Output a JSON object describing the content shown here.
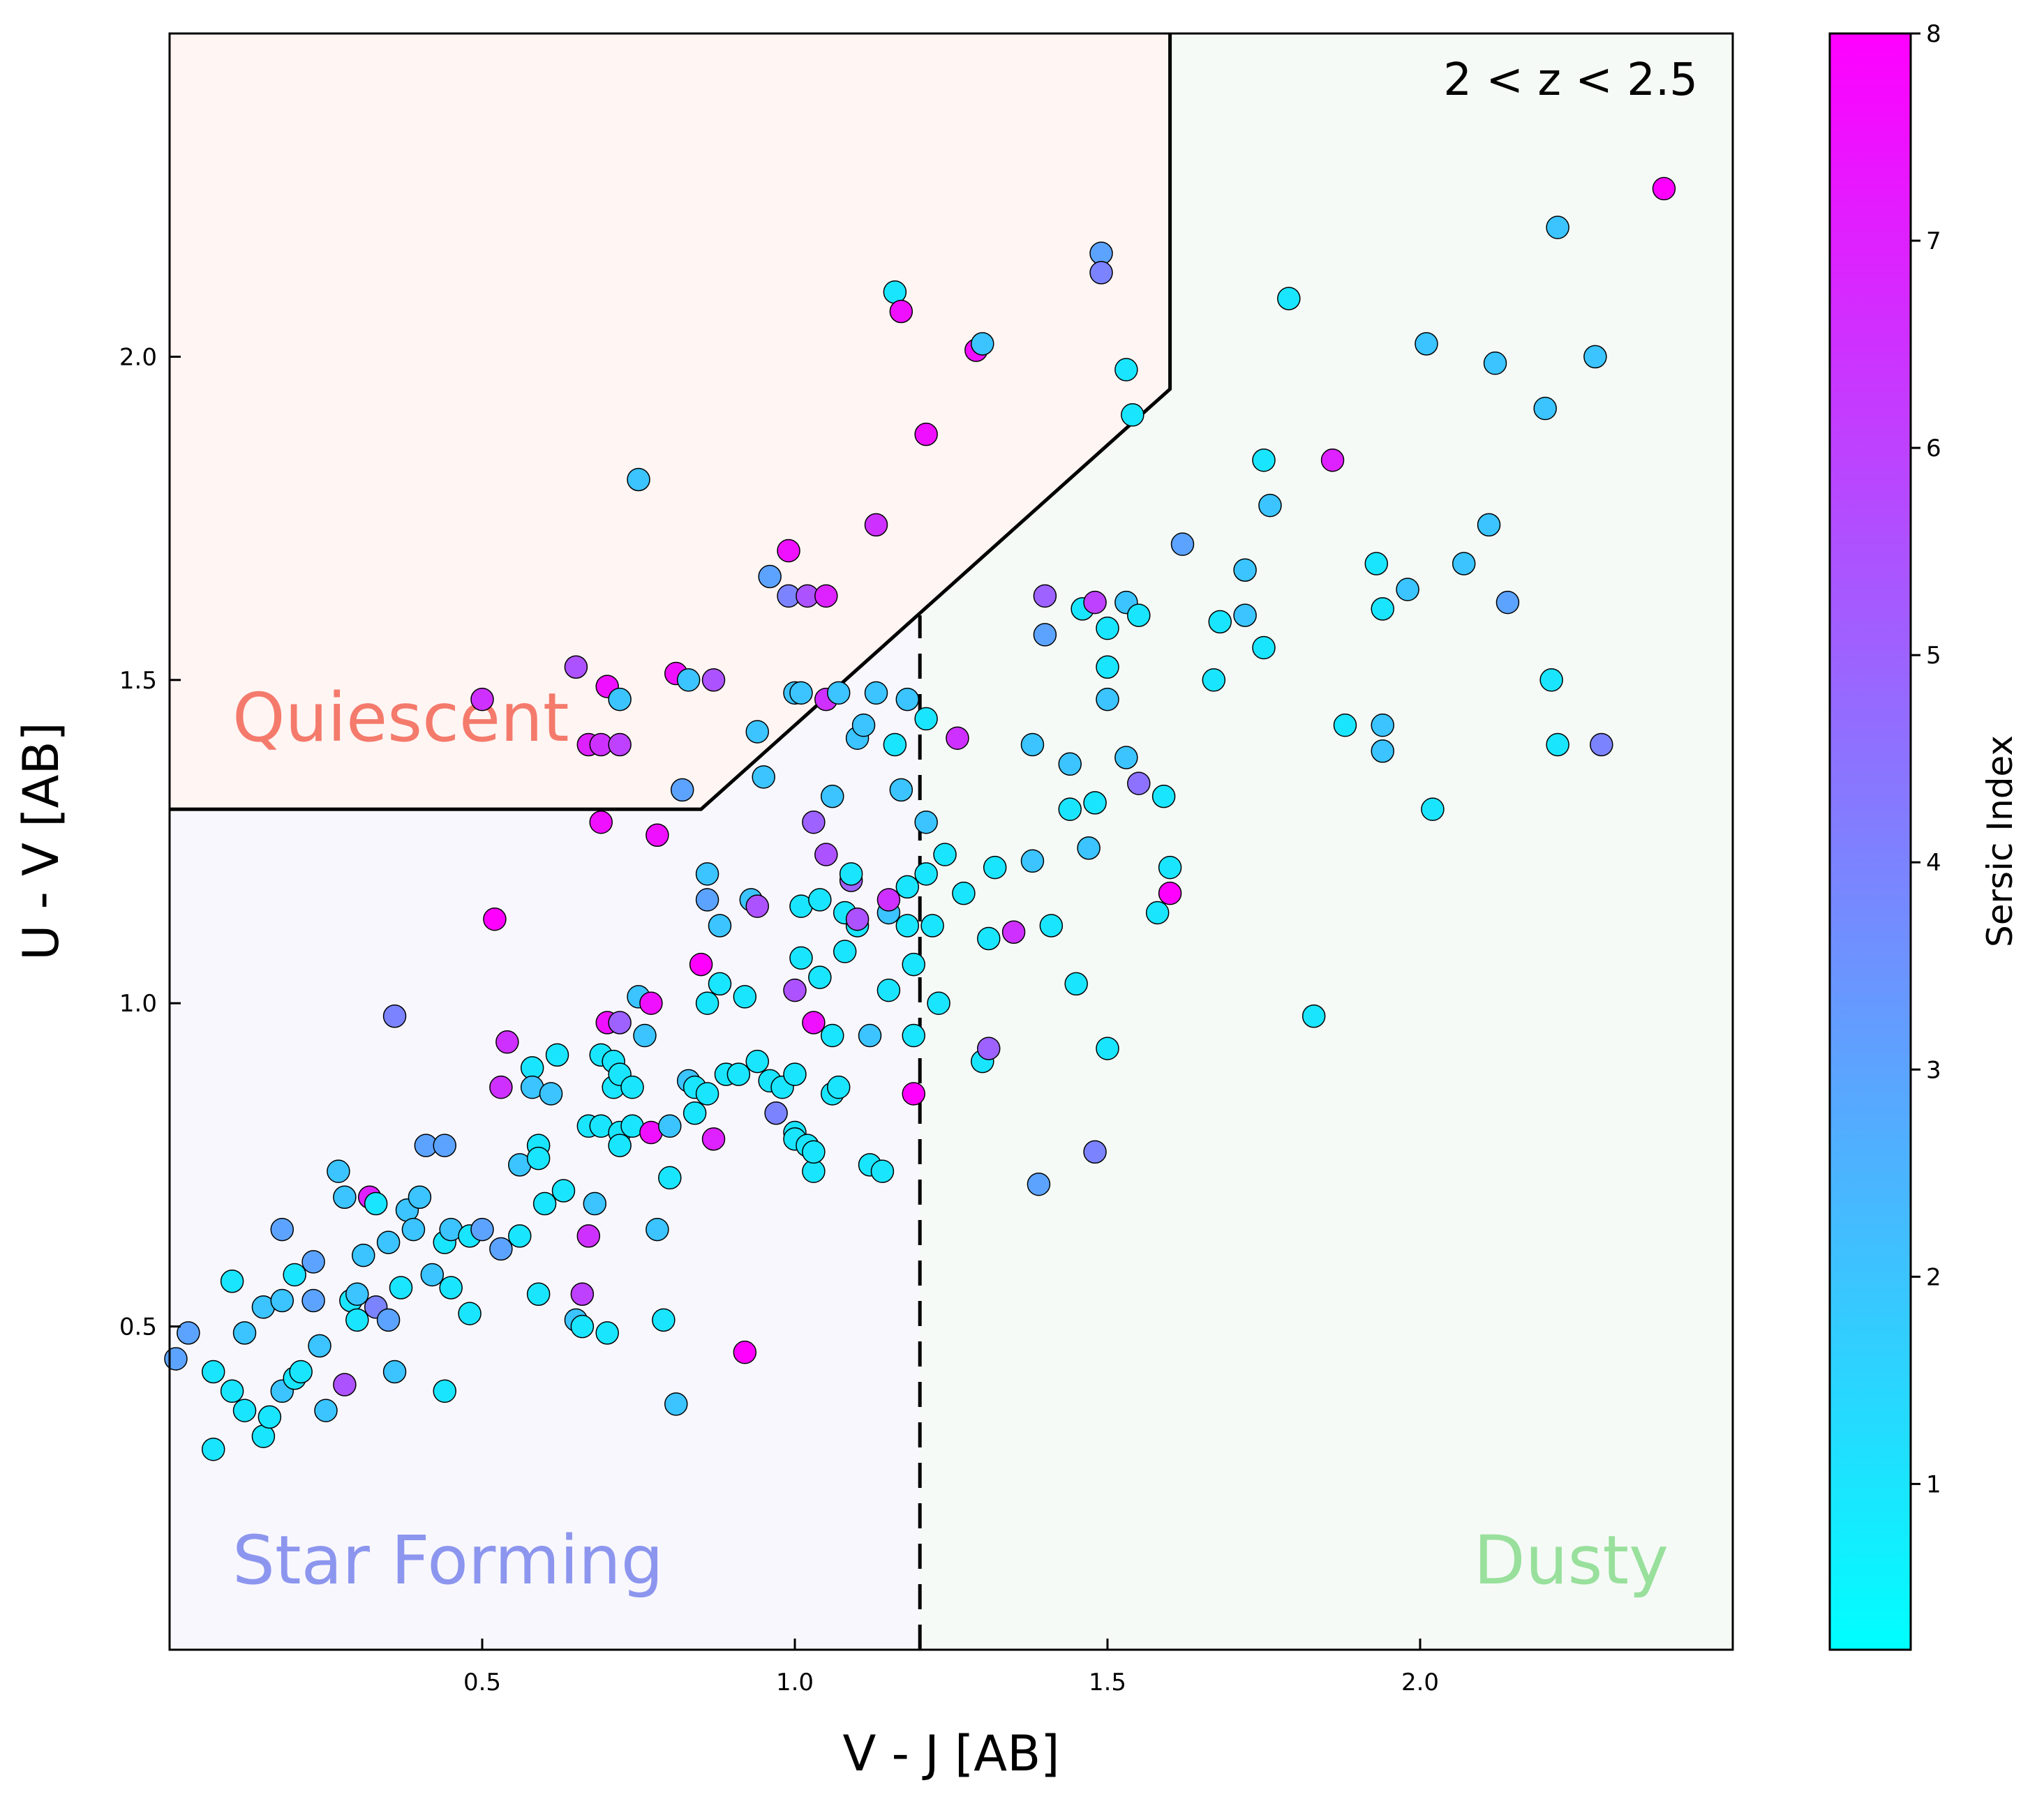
{
  "chart_data": {
    "type": "scatter",
    "annotation": "2 < z < 2.5",
    "xlabel": "V - J [AB]",
    "ylabel": "U - V [AB]",
    "xlim": [
      0.0,
      2.5
    ],
    "ylim": [
      0.0,
      2.5
    ],
    "xticks": [
      0.5,
      1.0,
      1.5,
      2.0
    ],
    "yticks": [
      0.5,
      1.0,
      1.5,
      2.0
    ],
    "grid": false,
    "regions": [
      {
        "label": "Quiescent",
        "color": "#f47a6c",
        "fill": "#fff5f3"
      },
      {
        "label": "Star Forming",
        "color": "#8c96ee",
        "fill": "#f8f7fd"
      },
      {
        "label": "Dusty",
        "color": "#98e09c",
        "fill": "#f5faf6"
      }
    ],
    "quiescent_boundary": [
      [
        0.0,
        1.3
      ],
      [
        0.85,
        1.3
      ],
      [
        1.6,
        1.95
      ],
      [
        1.6,
        2.5
      ]
    ],
    "dusty_divider": {
      "x": 1.2,
      "y_range": [
        0.0,
        1.6
      ]
    },
    "colorbar": {
      "label": "Sersic Index",
      "min": 0.2,
      "max": 8.0,
      "ticks": [
        1,
        2,
        3,
        4,
        5,
        6,
        7,
        8
      ],
      "colormap": "cool",
      "colors": [
        "#00ffff",
        "#ff00ff"
      ]
    },
    "points": [
      [
        0.01,
        0.45,
        3.0
      ],
      [
        0.03,
        0.49,
        3.0
      ],
      [
        0.07,
        0.43,
        1.0
      ],
      [
        0.07,
        0.31,
        1.0
      ],
      [
        0.1,
        0.57,
        1.0
      ],
      [
        0.1,
        0.4,
        1.0
      ],
      [
        0.12,
        0.49,
        2.0
      ],
      [
        0.12,
        0.37,
        1.0
      ],
      [
        0.15,
        0.53,
        2.0
      ],
      [
        0.15,
        0.33,
        1.0
      ],
      [
        0.16,
        0.36,
        1.0
      ],
      [
        0.18,
        0.54,
        2.0
      ],
      [
        0.18,
        0.4,
        2.0
      ],
      [
        0.18,
        0.65,
        3.0
      ],
      [
        0.2,
        0.58,
        1.0
      ],
      [
        0.2,
        0.42,
        1.0
      ],
      [
        0.21,
        0.43,
        1.0
      ],
      [
        0.23,
        0.6,
        3.0
      ],
      [
        0.23,
        0.54,
        3.0
      ],
      [
        0.24,
        0.47,
        2.0
      ],
      [
        0.25,
        0.37,
        2.0
      ],
      [
        0.27,
        0.74,
        2.0
      ],
      [
        0.28,
        0.7,
        2.0
      ],
      [
        0.28,
        0.41,
        5.5
      ],
      [
        0.29,
        0.54,
        1.0
      ],
      [
        0.3,
        0.55,
        2.0
      ],
      [
        0.3,
        0.51,
        1.0
      ],
      [
        0.31,
        0.61,
        2.0
      ],
      [
        0.32,
        0.7,
        7.0
      ],
      [
        0.33,
        0.69,
        1.0
      ],
      [
        0.33,
        0.53,
        4.0
      ],
      [
        0.35,
        0.51,
        3.0
      ],
      [
        0.35,
        0.63,
        2.0
      ],
      [
        0.36,
        0.43,
        2.0
      ],
      [
        0.36,
        0.98,
        4.0
      ],
      [
        0.37,
        0.56,
        1.0
      ],
      [
        0.38,
        0.68,
        2.0
      ],
      [
        0.39,
        0.65,
        2.0
      ],
      [
        0.4,
        0.7,
        2.0
      ],
      [
        0.41,
        0.78,
        3.0
      ],
      [
        0.42,
        0.58,
        2.0
      ],
      [
        0.44,
        0.63,
        1.0
      ],
      [
        0.44,
        0.78,
        3.0
      ],
      [
        0.44,
        0.4,
        1.0
      ],
      [
        0.45,
        0.65,
        2.0
      ],
      [
        0.45,
        0.56,
        1.0
      ],
      [
        0.48,
        0.64,
        1.0
      ],
      [
        0.48,
        0.52,
        1.0
      ],
      [
        0.5,
        0.65,
        3.0
      ],
      [
        0.5,
        1.47,
        6.5
      ],
      [
        0.52,
        1.13,
        8.0
      ],
      [
        0.53,
        0.62,
        3.0
      ],
      [
        0.53,
        0.87,
        6.5
      ],
      [
        0.54,
        0.94,
        6.5
      ],
      [
        0.56,
        0.75,
        2.0
      ],
      [
        0.56,
        0.64,
        1.0
      ],
      [
        0.58,
        0.9,
        1.0
      ],
      [
        0.58,
        0.87,
        2.0
      ],
      [
        0.59,
        0.78,
        1.0
      ],
      [
        0.59,
        0.76,
        1.0
      ],
      [
        0.59,
        0.55,
        1.0
      ],
      [
        0.6,
        0.69,
        1.0
      ],
      [
        0.61,
        0.86,
        2.0
      ],
      [
        0.62,
        0.92,
        1.0
      ],
      [
        0.63,
        0.71,
        1.0
      ],
      [
        0.65,
        1.52,
        5.5
      ],
      [
        0.65,
        0.51,
        2.0
      ],
      [
        0.66,
        0.5,
        1.0
      ],
      [
        0.66,
        0.55,
        6.0
      ],
      [
        0.67,
        0.81,
        1.0
      ],
      [
        0.67,
        1.4,
        7.0
      ],
      [
        0.67,
        0.64,
        6.5
      ],
      [
        0.68,
        0.69,
        2.0
      ],
      [
        0.69,
        0.81,
        1.0
      ],
      [
        0.69,
        0.92,
        1.0
      ],
      [
        0.69,
        1.4,
        6.5
      ],
      [
        0.69,
        1.28,
        7.5
      ],
      [
        0.7,
        0.97,
        7.5
      ],
      [
        0.7,
        1.49,
        7.5
      ],
      [
        0.7,
        0.49,
        1.0
      ],
      [
        0.71,
        0.91,
        1.0
      ],
      [
        0.71,
        0.87,
        1.0
      ],
      [
        0.72,
        0.89,
        1.0
      ],
      [
        0.72,
        0.8,
        1.0
      ],
      [
        0.72,
        0.78,
        1.0
      ],
      [
        0.72,
        1.4,
        6.0
      ],
      [
        0.72,
        1.47,
        2.0
      ],
      [
        0.72,
        0.97,
        5.0
      ],
      [
        0.74,
        0.87,
        1.0
      ],
      [
        0.74,
        0.81,
        1.0
      ],
      [
        0.75,
        1.01,
        2.0
      ],
      [
        0.75,
        1.81,
        2.0
      ],
      [
        0.76,
        0.95,
        2.0
      ],
      [
        0.77,
        0.8,
        7.5
      ],
      [
        0.77,
        1.0,
        7.5
      ],
      [
        0.78,
        1.26,
        7.5
      ],
      [
        0.78,
        0.65,
        2.0
      ],
      [
        0.79,
        0.51,
        1.0
      ],
      [
        0.8,
        0.81,
        2.0
      ],
      [
        0.8,
        0.73,
        1.0
      ],
      [
        0.81,
        0.38,
        2.0
      ],
      [
        0.81,
        1.51,
        7.5
      ],
      [
        0.82,
        1.33,
        3.0
      ],
      [
        0.83,
        1.5,
        2.0
      ],
      [
        0.83,
        0.88,
        2.0
      ],
      [
        0.84,
        0.87,
        1.0
      ],
      [
        0.84,
        0.83,
        1.0
      ],
      [
        0.85,
        1.06,
        8.0
      ],
      [
        0.86,
        1.2,
        2.0
      ],
      [
        0.86,
        1.16,
        3.0
      ],
      [
        0.86,
        1.0,
        1.0
      ],
      [
        0.86,
        0.86,
        1.0
      ],
      [
        0.87,
        0.79,
        7.0
      ],
      [
        0.87,
        1.5,
        5.5
      ],
      [
        0.88,
        1.12,
        2.0
      ],
      [
        0.88,
        1.03,
        1.0
      ],
      [
        0.89,
        0.89,
        1.0
      ],
      [
        0.91,
        0.89,
        1.0
      ],
      [
        0.92,
        0.46,
        8.0
      ],
      [
        0.92,
        1.01,
        1.0
      ],
      [
        0.93,
        1.16,
        2.0
      ],
      [
        0.94,
        0.91,
        1.0
      ],
      [
        0.94,
        1.15,
        5.5
      ],
      [
        0.94,
        1.42,
        2.0
      ],
      [
        0.95,
        1.35,
        2.0
      ],
      [
        0.96,
        1.66,
        3.0
      ],
      [
        0.96,
        0.88,
        1.0
      ],
      [
        0.97,
        0.83,
        4.0
      ],
      [
        0.98,
        0.87,
        1.0
      ],
      [
        0.99,
        1.7,
        7.5
      ],
      [
        0.99,
        1.63,
        4.0
      ],
      [
        1.0,
        0.8,
        1.0
      ],
      [
        1.0,
        0.79,
        1.0
      ],
      [
        1.0,
        1.02,
        5.5
      ],
      [
        1.0,
        1.48,
        2.0
      ],
      [
        1.0,
        0.89,
        1.0
      ],
      [
        1.01,
        1.48,
        2.0
      ],
      [
        1.01,
        1.15,
        1.0
      ],
      [
        1.01,
        1.07,
        1.0
      ],
      [
        1.02,
        0.78,
        1.0
      ],
      [
        1.02,
        1.63,
        5.5
      ],
      [
        1.03,
        0.97,
        7.5
      ],
      [
        1.03,
        1.28,
        5.0
      ],
      [
        1.03,
        0.74,
        1.0
      ],
      [
        1.03,
        0.77,
        1.0
      ],
      [
        1.04,
        1.04,
        1.0
      ],
      [
        1.04,
        1.16,
        1.0
      ],
      [
        1.05,
        1.23,
        5.5
      ],
      [
        1.05,
        1.47,
        6.5
      ],
      [
        1.05,
        1.63,
        7.0
      ],
      [
        1.06,
        0.95,
        1.0
      ],
      [
        1.06,
        1.32,
        2.0
      ],
      [
        1.06,
        0.86,
        1.0
      ],
      [
        1.07,
        0.87,
        1.0
      ],
      [
        1.07,
        1.48,
        2.0
      ],
      [
        1.08,
        1.08,
        1.0
      ],
      [
        1.08,
        1.14,
        1.0
      ],
      [
        1.09,
        1.19,
        5.0
      ],
      [
        1.09,
        1.2,
        1.0
      ],
      [
        1.1,
        1.12,
        1.0
      ],
      [
        1.1,
        1.41,
        2.0
      ],
      [
        1.1,
        1.13,
        5.5
      ],
      [
        1.11,
        1.43,
        2.0
      ],
      [
        1.12,
        0.95,
        2.0
      ],
      [
        1.12,
        0.75,
        1.0
      ],
      [
        1.13,
        1.48,
        2.0
      ],
      [
        1.13,
        1.74,
        6.5
      ],
      [
        1.14,
        0.74,
        1.0
      ],
      [
        1.15,
        1.14,
        2.0
      ],
      [
        1.15,
        1.16,
        6.5
      ],
      [
        1.15,
        1.02,
        1.0
      ],
      [
        1.16,
        2.1,
        1.0
      ],
      [
        1.16,
        1.4,
        1.0
      ],
      [
        1.17,
        2.07,
        7.5
      ],
      [
        1.17,
        1.33,
        2.0
      ],
      [
        1.18,
        1.47,
        2.0
      ],
      [
        1.18,
        1.18,
        1.0
      ],
      [
        1.18,
        1.12,
        1.0
      ],
      [
        1.19,
        0.86,
        8.0
      ],
      [
        1.19,
        1.06,
        1.0
      ],
      [
        1.19,
        0.95,
        1.0
      ],
      [
        1.21,
        1.88,
        7.5
      ],
      [
        1.21,
        1.28,
        2.0
      ],
      [
        1.21,
        1.44,
        1.0
      ],
      [
        1.21,
        1.2,
        1.0
      ],
      [
        1.22,
        1.12,
        1.0
      ],
      [
        1.23,
        1.0,
        1.0
      ],
      [
        1.24,
        1.23,
        1.0
      ],
      [
        1.26,
        1.41,
        6.5
      ],
      [
        1.27,
        1.17,
        1.0
      ],
      [
        1.29,
        2.01,
        7.5
      ],
      [
        1.3,
        2.02,
        2.0
      ],
      [
        1.3,
        0.91,
        1.0
      ],
      [
        1.31,
        1.1,
        1.0
      ],
      [
        1.31,
        0.93,
        5.0
      ],
      [
        1.32,
        1.21,
        1.0
      ],
      [
        1.35,
        1.11,
        6.5
      ],
      [
        1.38,
        1.4,
        2.0
      ],
      [
        1.38,
        1.22,
        2.0
      ],
      [
        1.39,
        0.72,
        3.0
      ],
      [
        1.4,
        1.63,
        5.0
      ],
      [
        1.4,
        1.57,
        3.0
      ],
      [
        1.41,
        1.12,
        1.0
      ],
      [
        1.44,
        1.37,
        2.0
      ],
      [
        1.44,
        1.3,
        1.0
      ],
      [
        1.45,
        1.03,
        1.0
      ],
      [
        1.46,
        1.61,
        1.0
      ],
      [
        1.47,
        1.24,
        2.0
      ],
      [
        1.48,
        1.62,
        6.0
      ],
      [
        1.48,
        1.31,
        1.0
      ],
      [
        1.48,
        0.77,
        4.0
      ],
      [
        1.49,
        2.16,
        3.0
      ],
      [
        1.49,
        2.13,
        4.0
      ],
      [
        1.5,
        1.58,
        1.0
      ],
      [
        1.5,
        1.52,
        1.0
      ],
      [
        1.5,
        1.47,
        2.0
      ],
      [
        1.5,
        0.93,
        1.0
      ],
      [
        1.53,
        1.62,
        2.0
      ],
      [
        1.53,
        1.98,
        1.0
      ],
      [
        1.53,
        1.38,
        2.0
      ],
      [
        1.54,
        1.91,
        1.0
      ],
      [
        1.55,
        1.34,
        4.5
      ],
      [
        1.55,
        1.6,
        1.0
      ],
      [
        1.58,
        1.14,
        1.0
      ],
      [
        1.59,
        1.32,
        1.0
      ],
      [
        1.6,
        1.21,
        1.0
      ],
      [
        1.6,
        1.17,
        8.0
      ],
      [
        1.62,
        1.71,
        3.0
      ],
      [
        1.67,
        1.5,
        1.0
      ],
      [
        1.68,
        1.59,
        1.0
      ],
      [
        1.72,
        1.6,
        2.0
      ],
      [
        1.72,
        1.67,
        2.0
      ],
      [
        1.75,
        1.84,
        1.0
      ],
      [
        1.75,
        1.55,
        1.0
      ],
      [
        1.76,
        1.77,
        2.0
      ],
      [
        1.79,
        2.09,
        1.0
      ],
      [
        1.83,
        0.98,
        1.0
      ],
      [
        1.86,
        1.84,
        7.0
      ],
      [
        1.88,
        1.43,
        1.0
      ],
      [
        1.93,
        1.68,
        1.0
      ],
      [
        1.94,
        1.43,
        2.0
      ],
      [
        1.94,
        1.39,
        2.0
      ],
      [
        1.94,
        1.61,
        1.0
      ],
      [
        1.98,
        1.64,
        2.0
      ],
      [
        2.01,
        2.02,
        2.0
      ],
      [
        2.02,
        1.3,
        1.0
      ],
      [
        2.07,
        1.68,
        2.0
      ],
      [
        2.11,
        1.74,
        2.0
      ],
      [
        2.12,
        1.99,
        2.0
      ],
      [
        2.14,
        1.62,
        3.0
      ],
      [
        2.2,
        1.92,
        2.0
      ],
      [
        2.21,
        1.5,
        1.0
      ],
      [
        2.22,
        2.2,
        2.0
      ],
      [
        2.22,
        1.4,
        1.0
      ],
      [
        2.28,
        2.0,
        2.0
      ],
      [
        2.29,
        1.4,
        4.0
      ],
      [
        2.39,
        2.26,
        8.0
      ]
    ]
  }
}
